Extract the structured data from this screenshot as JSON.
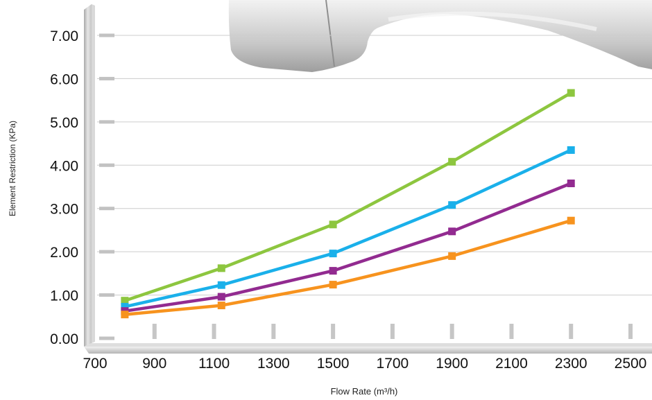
{
  "colors": {
    "series_green": "#8dc63f",
    "series_cyan": "#1ab0ea",
    "series_purple": "#922b90",
    "series_orange": "#f7931e",
    "grid": "#cccccc",
    "axis_bar": "#c9c9c9"
  },
  "chart_data": {
    "type": "line",
    "title": "",
    "xlabel": "Flow Rate (m³/h)",
    "ylabel": "Element Restriction (KPa)",
    "xlim": [
      700,
      2500
    ],
    "ylim": [
      0,
      7
    ],
    "x_ticks": [
      "700",
      "900",
      "1100",
      "1300",
      "1500",
      "1700",
      "1900",
      "2100",
      "2300",
      "2500"
    ],
    "y_ticks": [
      "0.00",
      "1.00",
      "2.00",
      "3.00",
      "4.00",
      "5.00",
      "6.00",
      "7.00"
    ],
    "grid": true,
    "legend": "none",
    "series": [
      {
        "color": "#8dc63f",
        "x": [
          800,
          1125,
          1500,
          1900,
          2300
        ],
        "y": [
          0.87,
          1.62,
          2.63,
          4.08,
          5.67
        ]
      },
      {
        "color": "#1ab0ea",
        "x": [
          800,
          1125,
          1500,
          1900,
          2300
        ],
        "y": [
          0.73,
          1.23,
          1.96,
          3.08,
          4.35
        ]
      },
      {
        "color": "#922b90",
        "x": [
          800,
          1125,
          1500,
          1900,
          2300
        ],
        "y": [
          0.63,
          0.96,
          1.56,
          2.47,
          3.58
        ]
      },
      {
        "color": "#f7931e",
        "x": [
          800,
          1125,
          1500,
          1900,
          2300
        ],
        "y": [
          0.55,
          0.76,
          1.24,
          1.9,
          2.72
        ]
      }
    ]
  }
}
